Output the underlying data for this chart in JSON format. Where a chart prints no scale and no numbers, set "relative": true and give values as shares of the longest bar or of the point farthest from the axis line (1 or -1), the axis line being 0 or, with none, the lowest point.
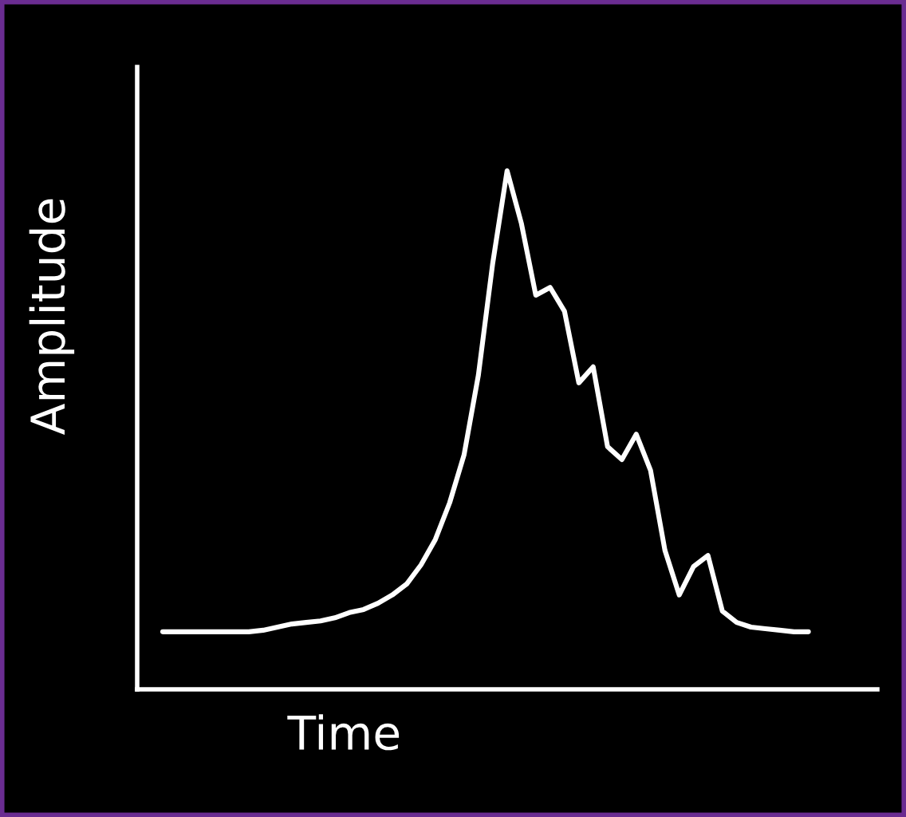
{
  "chart_data": {
    "type": "line",
    "relative": true,
    "xlabel": "Time",
    "ylabel": "Amplitude",
    "grid": false,
    "legend": false,
    "marker": "none",
    "line_style": "solid",
    "categories": [
      null,
      null,
      null,
      null,
      null,
      null,
      null,
      null,
      null,
      null,
      null,
      null,
      null,
      null,
      null,
      null,
      null,
      null,
      null,
      null,
      null,
      null,
      null,
      null,
      null,
      null,
      null,
      null,
      null,
      null,
      null,
      null,
      null,
      null,
      null,
      null,
      null,
      null,
      null,
      null,
      null,
      null,
      null,
      null,
      null,
      null
    ],
    "series": [
      {
        "color": "#ffffff",
        "values": [
          0.111,
          0.111,
          0.111,
          0.111,
          0.111,
          0.111,
          0.111,
          0.114,
          0.12,
          0.126,
          0.129,
          0.132,
          0.138,
          0.148,
          0.154,
          0.166,
          0.182,
          0.203,
          0.24,
          0.289,
          0.36,
          0.452,
          0.606,
          0.822,
          1.0,
          0.898,
          0.76,
          0.775,
          0.729,
          0.591,
          0.622,
          0.468,
          0.443,
          0.492,
          0.422,
          0.268,
          0.182,
          0.237,
          0.258,
          0.151,
          0.129,
          0.12,
          0.117,
          0.114,
          0.111,
          0.111
        ]
      }
    ]
  }
}
